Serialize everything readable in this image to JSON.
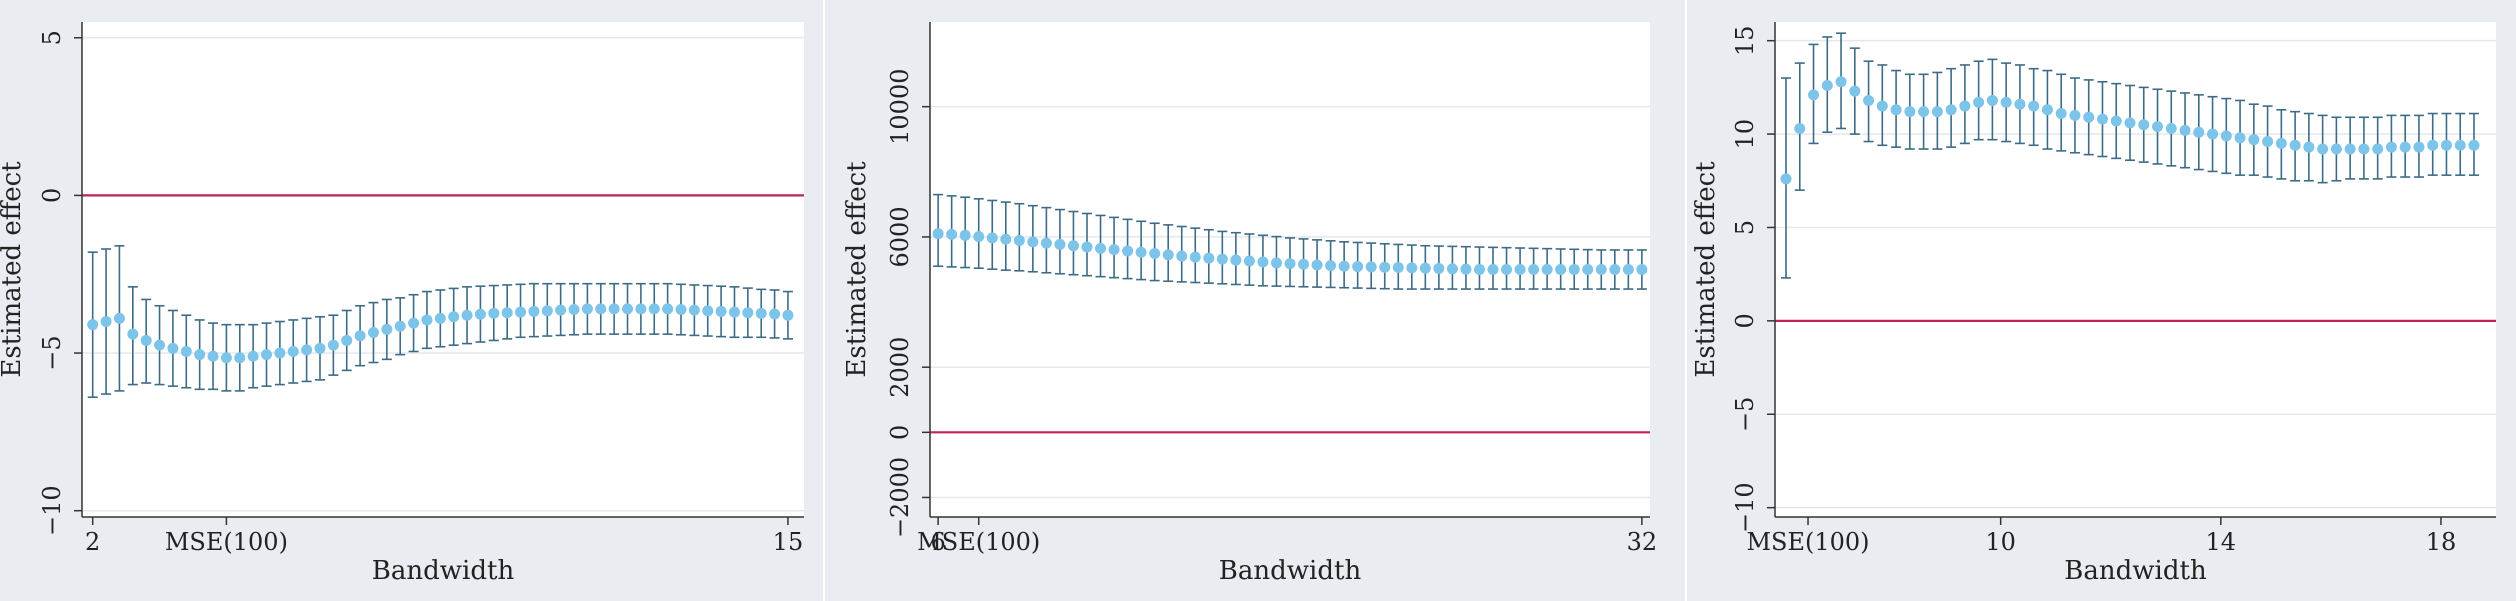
{
  "chart_data": [
    {
      "type": "scatter",
      "title": "",
      "xlabel": "Bandwidth",
      "ylabel": "Estimated effect",
      "xlim": [
        1.8,
        15.3
      ],
      "ylim": [
        -10.2,
        5.5
      ],
      "xticks": [
        {
          "value": 2,
          "label": "2"
        },
        {
          "value": 4.5,
          "label": "MSE(100)"
        },
        {
          "value": 15,
          "label": "15"
        }
      ],
      "yticks": [
        {
          "value": 5,
          "label": "5"
        },
        {
          "value": 0,
          "label": "0"
        },
        {
          "value": -5,
          "label": "−5"
        },
        {
          "value": -10,
          "label": "−10"
        }
      ],
      "reference_line": {
        "value": 0,
        "color": "#c1224f"
      },
      "grid": true,
      "marker_color": "#7cc4e9",
      "ci_color": "#3d6b86",
      "x": [
        2.0,
        2.25,
        2.5,
        2.75,
        3.0,
        3.25,
        3.5,
        3.75,
        4.0,
        4.25,
        4.5,
        4.75,
        5.0,
        5.25,
        5.5,
        5.75,
        6.0,
        6.25,
        6.5,
        6.75,
        7.0,
        7.25,
        7.5,
        7.75,
        8.0,
        8.25,
        8.5,
        8.75,
        9.0,
        9.25,
        9.5,
        9.75,
        10.0,
        10.25,
        10.5,
        10.75,
        11.0,
        11.25,
        11.5,
        11.75,
        12.0,
        12.25,
        12.5,
        12.75,
        13.0,
        13.25,
        13.5,
        13.75,
        14.0,
        14.25,
        14.5,
        14.75,
        15.0
      ],
      "y": [
        -4.1,
        -4.0,
        -3.9,
        -4.4,
        -4.6,
        -4.75,
        -4.85,
        -4.95,
        -5.05,
        -5.1,
        -5.15,
        -5.15,
        -5.1,
        -5.05,
        -5.0,
        -4.95,
        -4.9,
        -4.85,
        -4.75,
        -4.6,
        -4.45,
        -4.35,
        -4.25,
        -4.15,
        -4.05,
        -3.95,
        -3.9,
        -3.85,
        -3.8,
        -3.77,
        -3.74,
        -3.72,
        -3.7,
        -3.68,
        -3.66,
        -3.64,
        -3.62,
        -3.6,
        -3.6,
        -3.6,
        -3.6,
        -3.6,
        -3.6,
        -3.6,
        -3.62,
        -3.64,
        -3.66,
        -3.68,
        -3.7,
        -3.72,
        -3.74,
        -3.76,
        -3.8
      ],
      "ci_low": [
        -6.4,
        -6.3,
        -6.2,
        -6.0,
        -5.95,
        -6.0,
        -6.05,
        -6.1,
        -6.15,
        -6.15,
        -6.2,
        -6.2,
        -6.1,
        -6.05,
        -6.0,
        -5.95,
        -5.9,
        -5.85,
        -5.7,
        -5.55,
        -5.4,
        -5.3,
        -5.2,
        -5.05,
        -4.95,
        -4.85,
        -4.8,
        -4.75,
        -4.7,
        -4.65,
        -4.6,
        -4.55,
        -4.5,
        -4.48,
        -4.46,
        -4.44,
        -4.42,
        -4.4,
        -4.4,
        -4.4,
        -4.4,
        -4.4,
        -4.4,
        -4.4,
        -4.42,
        -4.44,
        -4.46,
        -4.48,
        -4.5,
        -4.5,
        -4.5,
        -4.52,
        -4.55
      ],
      "ci_high": [
        -1.8,
        -1.7,
        -1.6,
        -2.9,
        -3.3,
        -3.5,
        -3.65,
        -3.8,
        -3.95,
        -4.05,
        -4.1,
        -4.1,
        -4.1,
        -4.05,
        -4.0,
        -3.95,
        -3.9,
        -3.85,
        -3.8,
        -3.65,
        -3.5,
        -3.4,
        -3.3,
        -3.25,
        -3.15,
        -3.05,
        -3.0,
        -2.95,
        -2.9,
        -2.88,
        -2.86,
        -2.84,
        -2.82,
        -2.8,
        -2.8,
        -2.8,
        -2.8,
        -2.8,
        -2.8,
        -2.8,
        -2.8,
        -2.8,
        -2.8,
        -2.8,
        -2.82,
        -2.84,
        -2.86,
        -2.88,
        -2.9,
        -2.94,
        -2.98,
        -3.0,
        -3.05
      ]
    },
    {
      "type": "scatter",
      "title": "",
      "xlabel": "Bandwidth",
      "ylabel": "Estimated effect",
      "xlim": [
        5.7,
        32.3
      ],
      "ylim": [
        -2600,
        12600
      ],
      "xticks": [
        {
          "value": 6,
          "label": "6"
        },
        {
          "value": 7.5,
          "label": "MSE(100)"
        },
        {
          "value": 32,
          "label": "32"
        }
      ],
      "yticks": [
        {
          "value": 10000,
          "label": "10000"
        },
        {
          "value": 6000,
          "label": "6000"
        },
        {
          "value": 2000,
          "label": "2000"
        },
        {
          "value": 0,
          "label": "0"
        },
        {
          "value": -2000,
          "label": "−2000"
        }
      ],
      "reference_line": {
        "value": 0,
        "color": "#c1224f"
      },
      "grid": true,
      "marker_color": "#7cc4e9",
      "ci_color": "#3d6b86",
      "x": [
        6,
        6.5,
        7,
        7.5,
        8,
        8.5,
        9,
        9.5,
        10,
        10.5,
        11,
        11.5,
        12,
        12.5,
        13,
        13.5,
        14,
        14.5,
        15,
        15.5,
        16,
        16.5,
        17,
        17.5,
        18,
        18.5,
        19,
        19.5,
        20,
        20.5,
        21,
        21.5,
        22,
        22.5,
        23,
        23.5,
        24,
        24.5,
        25,
        25.5,
        26,
        26.5,
        27,
        27.5,
        28,
        28.5,
        29,
        29.5,
        30,
        30.5,
        31,
        31.5,
        32
      ],
      "y": [
        6100,
        6080,
        6050,
        6010,
        5970,
        5930,
        5890,
        5850,
        5810,
        5770,
        5730,
        5690,
        5650,
        5610,
        5570,
        5530,
        5490,
        5450,
        5410,
        5380,
        5350,
        5320,
        5290,
        5260,
        5230,
        5200,
        5180,
        5160,
        5140,
        5120,
        5100,
        5090,
        5080,
        5070,
        5060,
        5050,
        5040,
        5030,
        5020,
        5010,
        5000,
        5000,
        5000,
        5000,
        5000,
        5000,
        5000,
        5000,
        5000,
        5000,
        5000,
        5000,
        5000
      ],
      "ci_low": [
        5100,
        5080,
        5060,
        5040,
        5010,
        4980,
        4960,
        4930,
        4900,
        4870,
        4840,
        4810,
        4780,
        4750,
        4720,
        4690,
        4660,
        4640,
        4620,
        4600,
        4580,
        4560,
        4540,
        4520,
        4500,
        4490,
        4480,
        4470,
        4460,
        4450,
        4440,
        4430,
        4420,
        4410,
        4400,
        4400,
        4400,
        4400,
        4400,
        4400,
        4400,
        4400,
        4400,
        4400,
        4400,
        4400,
        4400,
        4400,
        4400,
        4400,
        4400,
        4400,
        4400
      ],
      "ci_high": [
        7300,
        7260,
        7220,
        7170,
        7120,
        7070,
        7020,
        6960,
        6900,
        6840,
        6780,
        6720,
        6660,
        6600,
        6540,
        6480,
        6420,
        6370,
        6320,
        6270,
        6220,
        6170,
        6130,
        6090,
        6050,
        6010,
        5970,
        5940,
        5910,
        5880,
        5850,
        5830,
        5810,
        5790,
        5770,
        5750,
        5730,
        5720,
        5710,
        5700,
        5690,
        5680,
        5670,
        5660,
        5650,
        5640,
        5630,
        5620,
        5610,
        5600,
        5600,
        5600,
        5600
      ]
    },
    {
      "type": "scatter",
      "title": "",
      "xlabel": "Bandwidth",
      "ylabel": "Estimated effect",
      "xlim": [
        5.9,
        19.0
      ],
      "ylim": [
        -10.5,
        16
      ],
      "xticks": [
        {
          "value": 6.5,
          "label": "MSE(100)"
        },
        {
          "value": 10,
          "label": "10"
        },
        {
          "value": 14,
          "label": "14"
        },
        {
          "value": 18,
          "label": "18"
        }
      ],
      "yticks": [
        {
          "value": 15,
          "label": "15"
        },
        {
          "value": 10,
          "label": "10"
        },
        {
          "value": 5,
          "label": "5"
        },
        {
          "value": 0,
          "label": "0"
        },
        {
          "value": -5,
          "label": "−5"
        },
        {
          "value": -10,
          "label": "−10"
        }
      ],
      "reference_line": {
        "value": 0,
        "color": "#c1224f"
      },
      "grid": true,
      "marker_color": "#7cc4e9",
      "ci_color": "#3d6b86",
      "x": [
        6.1,
        6.35,
        6.6,
        6.85,
        7.1,
        7.35,
        7.6,
        7.85,
        8.1,
        8.35,
        8.6,
        8.85,
        9.1,
        9.35,
        9.6,
        9.85,
        10.1,
        10.35,
        10.6,
        10.85,
        11.1,
        11.35,
        11.6,
        11.85,
        12.1,
        12.35,
        12.6,
        12.85,
        13.1,
        13.35,
        13.6,
        13.85,
        14.1,
        14.35,
        14.6,
        14.85,
        15.1,
        15.35,
        15.6,
        15.85,
        16.1,
        16.35,
        16.6,
        16.85,
        17.1,
        17.35,
        17.6,
        17.85,
        18.1,
        18.35,
        18.6
      ],
      "y": [
        7.6,
        10.3,
        12.1,
        12.6,
        12.8,
        12.3,
        11.8,
        11.5,
        11.3,
        11.2,
        11.2,
        11.2,
        11.3,
        11.5,
        11.7,
        11.8,
        11.7,
        11.6,
        11.5,
        11.3,
        11.1,
        11.0,
        10.9,
        10.8,
        10.7,
        10.6,
        10.5,
        10.4,
        10.3,
        10.2,
        10.1,
        10.0,
        9.9,
        9.8,
        9.7,
        9.6,
        9.5,
        9.4,
        9.3,
        9.2,
        9.2,
        9.2,
        9.2,
        9.2,
        9.3,
        9.3,
        9.3,
        9.4,
        9.4,
        9.4,
        9.4
      ],
      "ci_low": [
        2.3,
        7.0,
        9.5,
        10.1,
        10.3,
        10.0,
        9.6,
        9.4,
        9.3,
        9.2,
        9.2,
        9.2,
        9.3,
        9.5,
        9.7,
        9.7,
        9.6,
        9.5,
        9.4,
        9.2,
        9.1,
        9.0,
        8.9,
        8.8,
        8.7,
        8.6,
        8.5,
        8.4,
        8.3,
        8.2,
        8.1,
        8.0,
        7.9,
        7.8,
        7.8,
        7.7,
        7.6,
        7.5,
        7.5,
        7.4,
        7.5,
        7.6,
        7.6,
        7.6,
        7.7,
        7.7,
        7.7,
        7.8,
        7.8,
        7.8,
        7.8
      ],
      "ci_high": [
        13.0,
        13.8,
        14.8,
        15.2,
        15.4,
        14.6,
        13.9,
        13.7,
        13.4,
        13.2,
        13.2,
        13.3,
        13.5,
        13.7,
        13.9,
        14.0,
        13.8,
        13.7,
        13.5,
        13.4,
        13.2,
        13.0,
        12.9,
        12.8,
        12.7,
        12.6,
        12.5,
        12.4,
        12.3,
        12.2,
        12.1,
        12.0,
        11.9,
        11.8,
        11.6,
        11.5,
        11.3,
        11.2,
        11.1,
        11.0,
        10.9,
        10.9,
        10.9,
        10.9,
        11.0,
        11.0,
        11.0,
        11.1,
        11.1,
        11.1,
        11.1
      ]
    }
  ]
}
